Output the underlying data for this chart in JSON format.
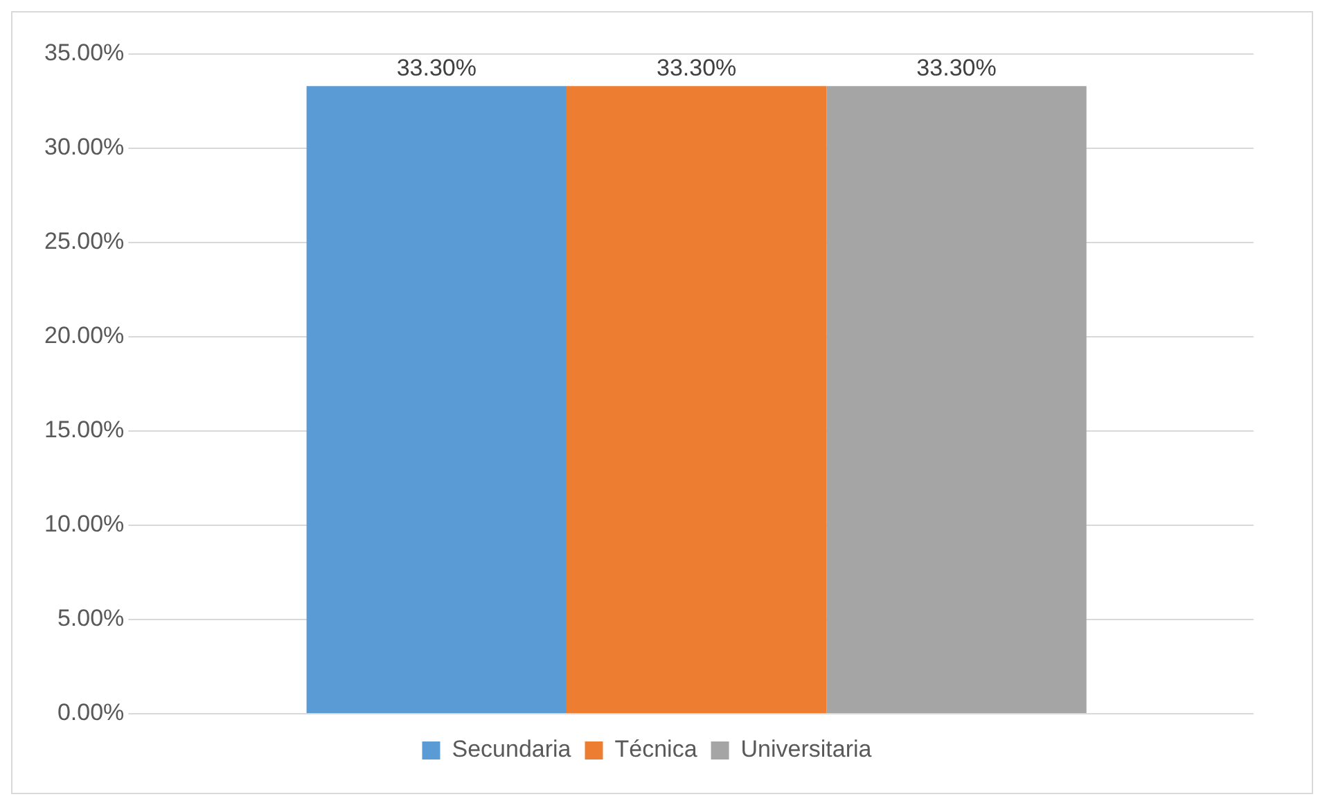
{
  "chart_data": {
    "type": "bar",
    "categories": [
      null
    ],
    "series": [
      {
        "name": "Secundaria",
        "color": "#5b9bd5",
        "values": [
          33.3
        ],
        "value_labels": [
          "33.30%"
        ]
      },
      {
        "name": "Técnica",
        "color": "#ed7d31",
        "values": [
          33.3
        ],
        "value_labels": [
          "33.30%"
        ]
      },
      {
        "name": "Universitaria",
        "color": "#a5a5a5",
        "values": [
          33.3
        ],
        "value_labels": [
          "33.30%"
        ]
      }
    ],
    "ylim": [
      0,
      35
    ],
    "yticks": [
      {
        "value": 0,
        "label": "0.00%"
      },
      {
        "value": 5,
        "label": "5.00%"
      },
      {
        "value": 10,
        "label": "10.00%"
      },
      {
        "value": 15,
        "label": "15.00%"
      },
      {
        "value": 20,
        "label": "20.00%"
      },
      {
        "value": 25,
        "label": "25.00%"
      },
      {
        "value": 30,
        "label": "30.00%"
      },
      {
        "value": 35,
        "label": "35.00%"
      }
    ],
    "grid": "y",
    "legend": "bottom"
  }
}
